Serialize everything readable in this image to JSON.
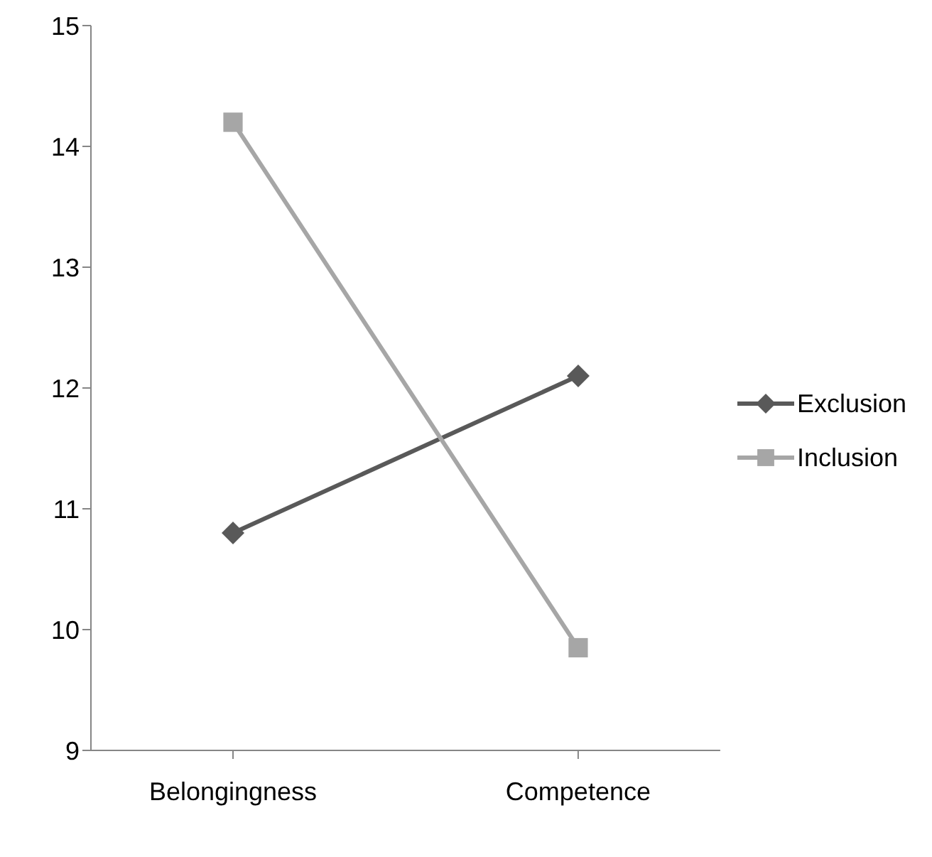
{
  "chart_data": {
    "type": "line",
    "categories": [
      "Belongingness",
      "Competence"
    ],
    "series": [
      {
        "name": "Exclusion",
        "color": "#595959",
        "values": [
          10.8,
          12.1
        ],
        "marker": "diamond"
      },
      {
        "name": "Inclusion",
        "color": "#a6a6a6",
        "values": [
          14.2,
          9.85
        ],
        "marker": "square"
      }
    ],
    "ylim": [
      9,
      15
    ],
    "yticks": [
      9,
      10,
      11,
      12,
      13,
      14,
      15
    ],
    "legend": "right",
    "line_style": "solid"
  }
}
